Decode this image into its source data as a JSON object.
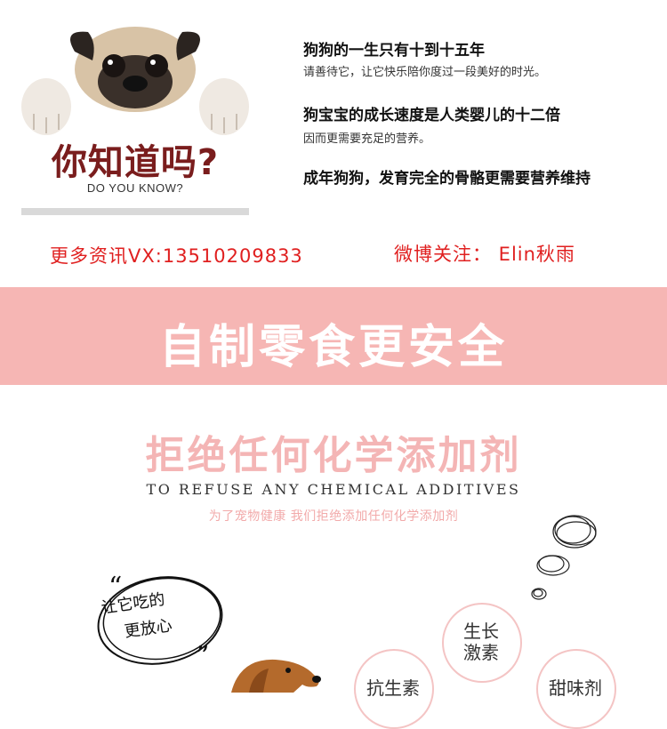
{
  "card": {
    "title": "你知道吗?",
    "subtitle": "DO YOU KNOW?"
  },
  "facts": [
    {
      "heading": "狗狗的一生只有十到十五年",
      "sub": "请善待它，让它快乐陪你度过一段美好的时光。"
    },
    {
      "heading": "狗宝宝的成长速度是人类婴儿的十二倍",
      "sub": "因而更需要充足的营养。"
    },
    {
      "heading": "成年狗狗，发育完全的骨骼更需要营养维持",
      "sub": ""
    }
  ],
  "contact": {
    "wechat": "更多资讯VX:13510209833",
    "weibo": "微博关注： Elin秋雨"
  },
  "banner": {
    "text": "自制零食更安全"
  },
  "section": {
    "title": "拒绝任何化学添加剂",
    "english": "TO REFUSE ANY CHEMICAL ADDITIVES",
    "chinese": "为了宠物健康 我们拒绝添加任何化学添加剂"
  },
  "quote": {
    "line1": "让它吃的",
    "line2": "更放心"
  },
  "badges": [
    {
      "line1": "生长",
      "line2": "激素"
    },
    {
      "line1": "抗生素",
      "line2": ""
    },
    {
      "line1": "甜味剂",
      "line2": ""
    }
  ],
  "colors": {
    "banner": "#f6b6b4",
    "accent_red": "#e02020",
    "card_title": "#7a1d1d",
    "pink_text": "#f4b5b5"
  },
  "icons": [
    "pug-icon",
    "quote-bubble-icon",
    "scribble-icon",
    "dog-icon"
  ]
}
